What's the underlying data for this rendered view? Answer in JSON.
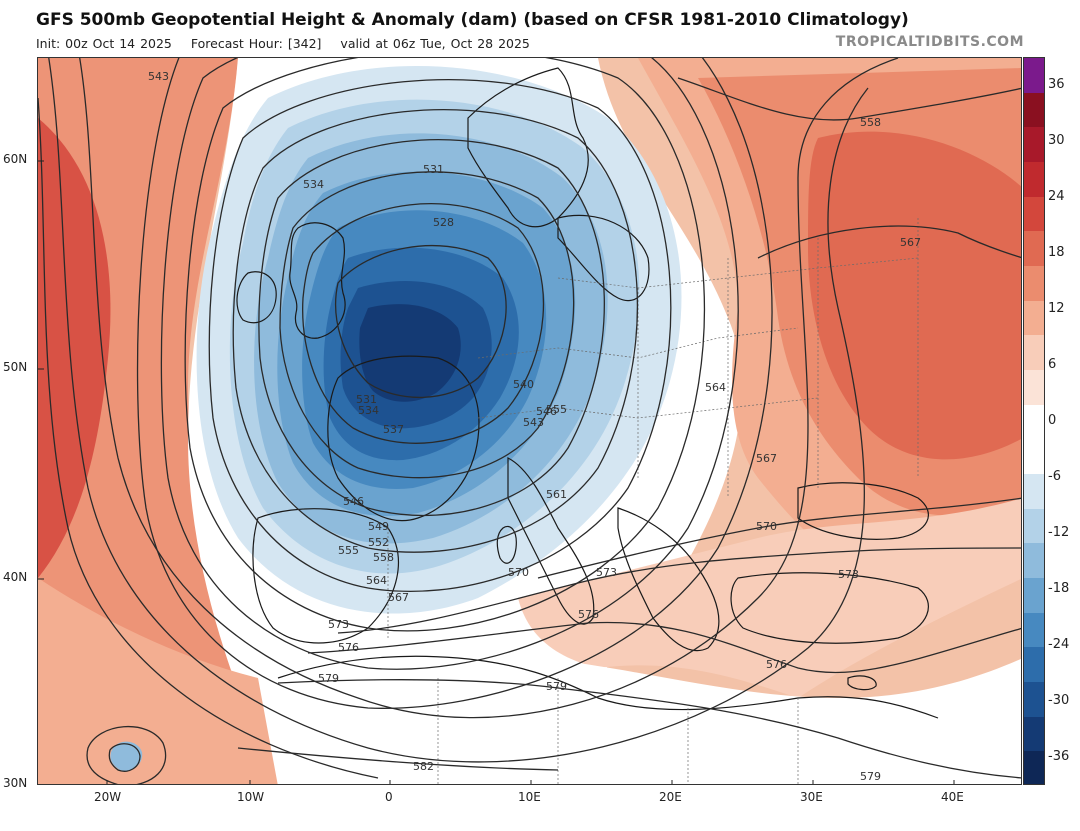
{
  "header": {
    "title": "GFS 500mb Geopotential Height & Anomaly (dam) (based on CFSR 1981-2010 Climatology)",
    "init": "Init: 00z Oct 14 2025",
    "forecast_hour": "Forecast Hour: [342]",
    "valid": "valid at 06z Tue, Oct 28 2025",
    "credit": "TROPICALTIDBITS.COM"
  },
  "axes": {
    "lat_labels": [
      "60N",
      "50N",
      "40N",
      "30N"
    ],
    "lon_labels": [
      "20W",
      "10W",
      "0",
      "10E",
      "20E",
      "30E",
      "40E"
    ]
  },
  "colorbar": {
    "labels": [
      "36",
      "30",
      "24",
      "18",
      "12",
      "6",
      "0",
      "-6",
      "-12",
      "-18",
      "-24",
      "-30",
      "-36"
    ],
    "colors": [
      "#7b1a8c",
      "#8a1020",
      "#a8192a",
      "#c02a2e",
      "#d3473c",
      "#e06a52",
      "#eb8c6e",
      "#f3ae91",
      "#f8cdb9",
      "#fbe3d7",
      "#ffffff",
      "#ffffff",
      "#d5e6f2",
      "#b3d2e8",
      "#8fbbdc",
      "#6aa3cf",
      "#4789c0",
      "#2d6dab",
      "#1d5291",
      "#143a74",
      "#0e2756"
    ]
  },
  "contours": {
    "labels": [
      "543",
      "558",
      "534",
      "531",
      "528",
      "567",
      "540",
      "564",
      "531",
      "534",
      "537",
      "543",
      "546",
      "555",
      "567",
      "561",
      "546",
      "549",
      "552",
      "555",
      "558",
      "564",
      "567",
      "570",
      "570",
      "573",
      "573",
      "576",
      "573",
      "576",
      "576",
      "579",
      "579",
      "582",
      "579"
    ]
  },
  "colors": {
    "anomaly_warm": "#e06a52",
    "anomaly_cold": "#1d5291",
    "contour_line": "#2a2a2a"
  }
}
